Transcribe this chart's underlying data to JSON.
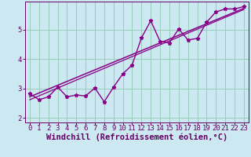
{
  "title": "",
  "xlabel": "Windchill (Refroidissement éolien,°C)",
  "ylabel": "",
  "bg_color": "#cce8f0",
  "grid_color": "#99ccbb",
  "line_color": "#880088",
  "xlim": [
    -0.5,
    23.5
  ],
  "ylim": [
    1.85,
    5.95
  ],
  "yticks": [
    2,
    3,
    4,
    5
  ],
  "xticks": [
    0,
    1,
    2,
    3,
    4,
    5,
    6,
    7,
    8,
    9,
    10,
    11,
    12,
    13,
    14,
    15,
    16,
    17,
    18,
    19,
    20,
    21,
    22,
    23
  ],
  "scatter_x": [
    0,
    1,
    2,
    3,
    4,
    5,
    6,
    7,
    8,
    9,
    10,
    11,
    12,
    13,
    14,
    15,
    16,
    17,
    18,
    19,
    20,
    21,
    22,
    23
  ],
  "scatter_y": [
    2.83,
    2.62,
    2.72,
    3.05,
    2.72,
    2.78,
    2.75,
    3.02,
    2.55,
    3.05,
    3.5,
    3.8,
    4.72,
    5.3,
    4.6,
    4.55,
    5.02,
    4.65,
    4.7,
    5.25,
    5.6,
    5.7,
    5.7,
    5.78
  ],
  "trend1_x": [
    0,
    23
  ],
  "trend1_y": [
    2.72,
    5.72
  ],
  "trend2_x": [
    0,
    23
  ],
  "trend2_y": [
    2.62,
    5.68
  ],
  "font_color": "#660066",
  "xlabel_fontsize": 7.5,
  "tick_fontsize": 6.5,
  "line_width": 1.0,
  "marker_size": 3.5
}
